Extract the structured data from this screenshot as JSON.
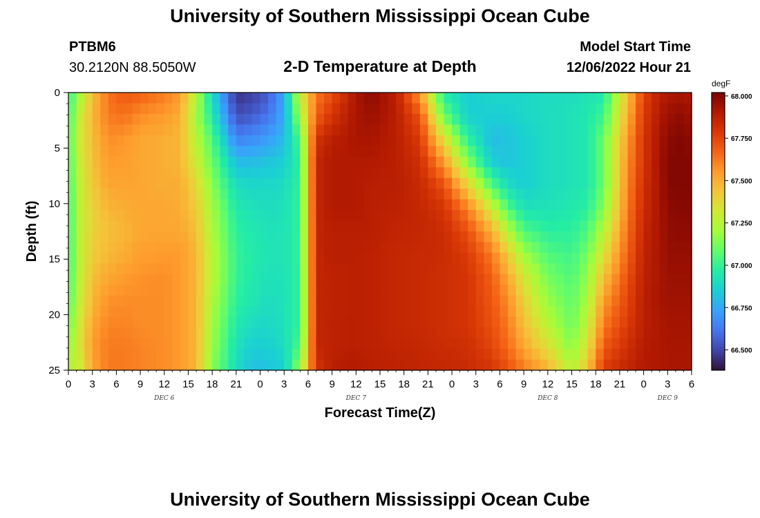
{
  "header": {
    "title": "University of Southern Mississippi Ocean Cube",
    "station": "PTBM6",
    "location": "30.2120N  88.5050W",
    "chart_title": "2-D Temperature at Depth",
    "model_start_label": "Model Start Time",
    "model_start_value": "12/06/2022 Hour 21"
  },
  "footer": {
    "title": "University of Southern Mississippi Ocean Cube"
  },
  "colorbar": {
    "unit": "degF",
    "colormap": [
      "#30123b",
      "#4145ab",
      "#4675ed",
      "#39a2fc",
      "#1bcfd4",
      "#24eca6",
      "#61fc6c",
      "#a4fc3b",
      "#d1e834",
      "#f3c63a",
      "#fe9b2d",
      "#f36315",
      "#d93806",
      "#b11901",
      "#7a0403"
    ]
  },
  "chart_data": {
    "type": "heatmap",
    "title": "2-D Temperature at Depth",
    "xlabel": "Forecast Time(Z)",
    "ylabel": "Depth (ft)",
    "x_hours": [
      0,
      3,
      6,
      9,
      12,
      15,
      18,
      21,
      24,
      27,
      30,
      33,
      36,
      39,
      42,
      45,
      48,
      51,
      54,
      57,
      60,
      63,
      66,
      69,
      72,
      75,
      78
    ],
    "x_tick_labels": [
      "0",
      "3",
      "6",
      "9",
      "12",
      "15",
      "18",
      "21",
      "0",
      "3",
      "6",
      "9",
      "12",
      "15",
      "18",
      "21",
      "0",
      "3",
      "6",
      "9",
      "12",
      "15",
      "18",
      "21",
      "0",
      "3",
      "6"
    ],
    "day_labels": [
      {
        "hour": 12,
        "label": "DEC 6"
      },
      {
        "hour": 36,
        "label": "DEC 7"
      },
      {
        "hour": 60,
        "label": "DEC 8"
      },
      {
        "hour": 75,
        "label": "DEC 9"
      }
    ],
    "xlim": [
      0,
      78
    ],
    "y_ticks": [
      0,
      5,
      10,
      15,
      20,
      25
    ],
    "y_tick_labels": [
      "0",
      "5",
      "10",
      "15",
      "20",
      "25"
    ],
    "ylim": [
      0,
      25
    ],
    "y_inverted": true,
    "depths": [
      0,
      5,
      10,
      15,
      20,
      25
    ],
    "times": [
      0,
      1.5,
      3,
      5,
      7,
      9,
      12,
      14,
      16,
      18,
      21,
      23,
      25,
      27,
      29,
      31,
      33,
      35,
      36,
      38,
      41,
      44,
      47,
      50,
      53,
      55,
      57,
      60,
      63,
      65,
      67,
      70,
      72,
      74,
      75,
      76.5,
      78
    ],
    "values": [
      [
        66.98,
        67.02,
        67.05,
        67.04,
        67.03,
        67.02,
        67.02,
        67.02,
        67.03,
        67.05,
        67.1,
        67.16,
        67.25
      ],
      [
        67.22,
        67.3,
        67.32,
        67.3,
        67.28,
        67.27,
        67.27,
        67.27,
        67.28,
        67.3,
        67.33,
        67.35,
        67.3
      ],
      [
        67.45,
        67.48,
        67.46,
        67.45,
        67.43,
        67.4,
        67.4,
        67.42,
        67.45,
        67.48,
        67.52,
        67.55,
        67.52
      ],
      [
        67.64,
        67.62,
        67.58,
        67.55,
        67.52,
        67.48,
        67.45,
        67.47,
        67.52,
        67.57,
        67.6,
        67.62,
        67.62
      ],
      [
        67.7,
        67.64,
        67.56,
        67.54,
        67.53,
        67.5,
        67.48,
        67.5,
        67.55,
        67.58,
        67.6,
        67.62,
        67.62
      ],
      [
        67.68,
        67.58,
        67.52,
        67.52,
        67.52,
        67.52,
        67.52,
        67.54,
        67.57,
        67.58,
        67.58,
        67.6,
        67.6
      ],
      [
        67.62,
        67.55,
        67.5,
        67.5,
        67.5,
        67.52,
        67.52,
        67.55,
        67.58,
        67.58,
        67.58,
        67.58,
        67.58
      ],
      [
        67.55,
        67.5,
        67.48,
        67.48,
        67.5,
        67.5,
        67.52,
        67.55,
        67.55,
        67.55,
        67.55,
        67.55,
        67.55
      ],
      [
        67.25,
        67.2,
        67.25,
        67.3,
        67.38,
        67.42,
        67.45,
        67.48,
        67.48,
        67.48,
        67.48,
        67.48,
        67.48
      ],
      [
        66.88,
        66.95,
        67.05,
        67.1,
        67.15,
        67.2,
        67.22,
        67.25,
        67.25,
        67.22,
        67.2,
        67.18,
        67.15
      ],
      [
        66.45,
        66.52,
        66.65,
        66.8,
        66.9,
        66.95,
        66.98,
        67.0,
        67.0,
        66.98,
        66.95,
        66.92,
        66.9
      ],
      [
        66.48,
        66.55,
        66.68,
        66.8,
        66.88,
        66.92,
        66.95,
        66.96,
        66.95,
        66.94,
        66.9,
        66.85,
        66.8
      ],
      [
        66.55,
        66.62,
        66.72,
        66.82,
        66.88,
        66.9,
        66.92,
        66.93,
        66.92,
        66.9,
        66.88,
        66.85,
        66.82
      ],
      [
        66.75,
        66.75,
        66.8,
        66.85,
        66.9,
        66.92,
        66.93,
        66.93,
        66.92,
        66.92,
        66.92,
        66.9,
        66.85
      ],
      [
        67.3,
        67.2,
        67.05,
        67.0,
        67.0,
        67.0,
        67.0,
        67.0,
        67.0,
        67.0,
        67.0,
        67.05,
        67.2
      ],
      [
        67.62,
        67.68,
        67.8,
        67.85,
        67.85,
        67.85,
        67.85,
        67.85,
        67.85,
        67.85,
        67.85,
        67.85,
        67.8
      ],
      [
        67.72,
        67.8,
        67.88,
        67.9,
        67.9,
        67.9,
        67.88,
        67.88,
        67.87,
        67.87,
        67.87,
        67.87,
        67.88
      ],
      [
        67.85,
        67.88,
        67.9,
        67.9,
        67.9,
        67.9,
        67.88,
        67.88,
        67.87,
        67.87,
        67.88,
        67.88,
        67.9
      ],
      [
        67.92,
        67.92,
        67.92,
        67.9,
        67.9,
        67.9,
        67.88,
        67.88,
        67.88,
        67.88,
        67.88,
        67.88,
        67.9
      ],
      [
        67.98,
        67.95,
        67.92,
        67.9,
        67.88,
        67.88,
        67.88,
        67.87,
        67.87,
        67.87,
        67.87,
        67.87,
        67.88
      ],
      [
        67.88,
        67.88,
        67.88,
        67.88,
        67.88,
        67.87,
        67.86,
        67.85,
        67.85,
        67.85,
        67.85,
        67.86,
        67.87
      ],
      [
        67.55,
        67.72,
        67.78,
        67.82,
        67.84,
        67.85,
        67.85,
        67.84,
        67.84,
        67.84,
        67.84,
        67.85,
        67.86
      ],
      [
        66.95,
        67.1,
        67.35,
        67.55,
        67.72,
        67.8,
        67.83,
        67.83,
        67.82,
        67.82,
        67.82,
        67.83,
        67.85
      ],
      [
        66.85,
        66.85,
        66.98,
        67.15,
        67.4,
        67.6,
        67.72,
        67.78,
        67.8,
        67.8,
        67.8,
        67.82,
        67.84
      ],
      [
        66.88,
        66.85,
        66.8,
        66.85,
        67.05,
        67.3,
        67.5,
        67.62,
        67.68,
        67.7,
        67.72,
        67.75,
        67.8
      ],
      [
        66.88,
        66.85,
        66.82,
        66.82,
        66.9,
        67.05,
        67.25,
        67.42,
        67.52,
        67.58,
        67.62,
        67.65,
        67.72
      ],
      [
        66.88,
        66.88,
        66.85,
        66.85,
        66.85,
        66.92,
        67.05,
        67.2,
        67.32,
        67.4,
        67.45,
        67.52,
        67.62
      ],
      [
        66.9,
        66.9,
        66.9,
        66.9,
        66.9,
        66.92,
        66.98,
        67.05,
        67.12,
        67.18,
        67.25,
        67.35,
        67.5
      ],
      [
        66.9,
        66.92,
        66.92,
        66.92,
        66.92,
        66.95,
        66.98,
        67.02,
        67.05,
        67.08,
        67.1,
        67.15,
        67.25
      ],
      [
        66.92,
        66.95,
        66.95,
        66.95,
        66.95,
        66.98,
        67.05,
        67.12,
        67.18,
        67.22,
        67.28,
        67.35,
        67.45
      ],
      [
        66.95,
        67.02,
        67.1,
        67.1,
        67.1,
        67.15,
        67.25,
        67.35,
        67.45,
        67.55,
        67.62,
        67.7,
        67.78
      ],
      [
        67.45,
        67.5,
        67.55,
        67.58,
        67.6,
        67.62,
        67.65,
        67.68,
        67.72,
        67.75,
        67.78,
        67.82,
        67.86
      ],
      [
        67.75,
        67.78,
        67.8,
        67.8,
        67.82,
        67.83,
        67.85,
        67.86,
        67.87,
        67.88,
        67.88,
        67.89,
        67.9
      ],
      [
        67.88,
        67.9,
        67.92,
        67.93,
        67.92,
        67.92,
        67.92,
        67.92,
        67.92,
        67.92,
        67.91,
        67.91,
        67.91
      ],
      [
        67.9,
        67.95,
        67.98,
        68.0,
        68.0,
        67.98,
        67.97,
        67.96,
        67.95,
        67.94,
        67.93,
        67.92,
        67.92
      ],
      [
        67.92,
        67.97,
        68.0,
        68.0,
        68.0,
        67.99,
        67.98,
        67.96,
        67.95,
        67.94,
        67.93,
        67.92,
        67.92
      ],
      [
        67.9,
        67.95,
        67.98,
        68.0,
        68.0,
        67.99,
        67.98,
        67.96,
        67.95,
        67.94,
        67.93,
        67.92,
        67.92
      ]
    ],
    "colorbar_ticks": [
      68.0,
      67.75,
      67.5,
      67.25,
      67.0,
      66.75,
      66.5
    ],
    "colorbar_tick_labels": [
      "68.000",
      "67.750",
      "67.500",
      "67.250",
      "67.000",
      "66.750",
      "66.500"
    ],
    "colorbar_range": [
      66.38,
      68.02
    ],
    "colorbar_unit": "degF"
  }
}
